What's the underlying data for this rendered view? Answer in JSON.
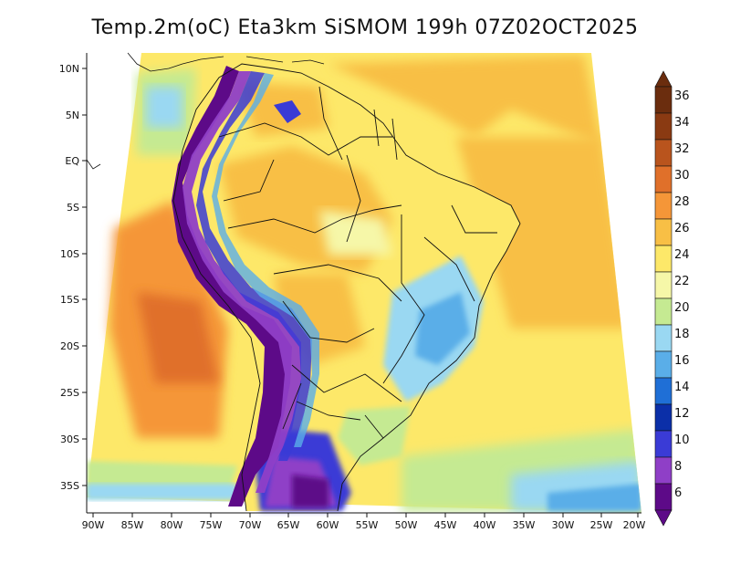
{
  "title": "Temp.2m(oC) Eta3km SiSMOM 199h 07Z02OCT2025",
  "axes": {
    "lat_labels": [
      "10N",
      "5N",
      "EQ",
      "5S",
      "10S",
      "15S",
      "20S",
      "25S",
      "30S",
      "35S"
    ],
    "lon_labels": [
      "90W",
      "85W",
      "80W",
      "75W",
      "70W",
      "65W",
      "60W",
      "55W",
      "50W",
      "45W",
      "40W",
      "35W",
      "30W",
      "25W",
      "20W"
    ]
  },
  "colorbar": {
    "labels": [
      "36",
      "34",
      "32",
      "30",
      "28",
      "26",
      "24",
      "22",
      "20",
      "18",
      "16",
      "14",
      "12",
      "10",
      "8",
      "6"
    ],
    "colors": [
      "#6b2d0e",
      "#8a3a12",
      "#b9541d",
      "#e0702a",
      "#f59638",
      "#f8bf45",
      "#fde869",
      "#f6f7a8",
      "#c5ea92",
      "#9ad8f2",
      "#5aaee8",
      "#1f6fd6",
      "#0b2fa8",
      "#3a3bd6",
      "#8f3fc7",
      "#5d0a88"
    ]
  }
}
